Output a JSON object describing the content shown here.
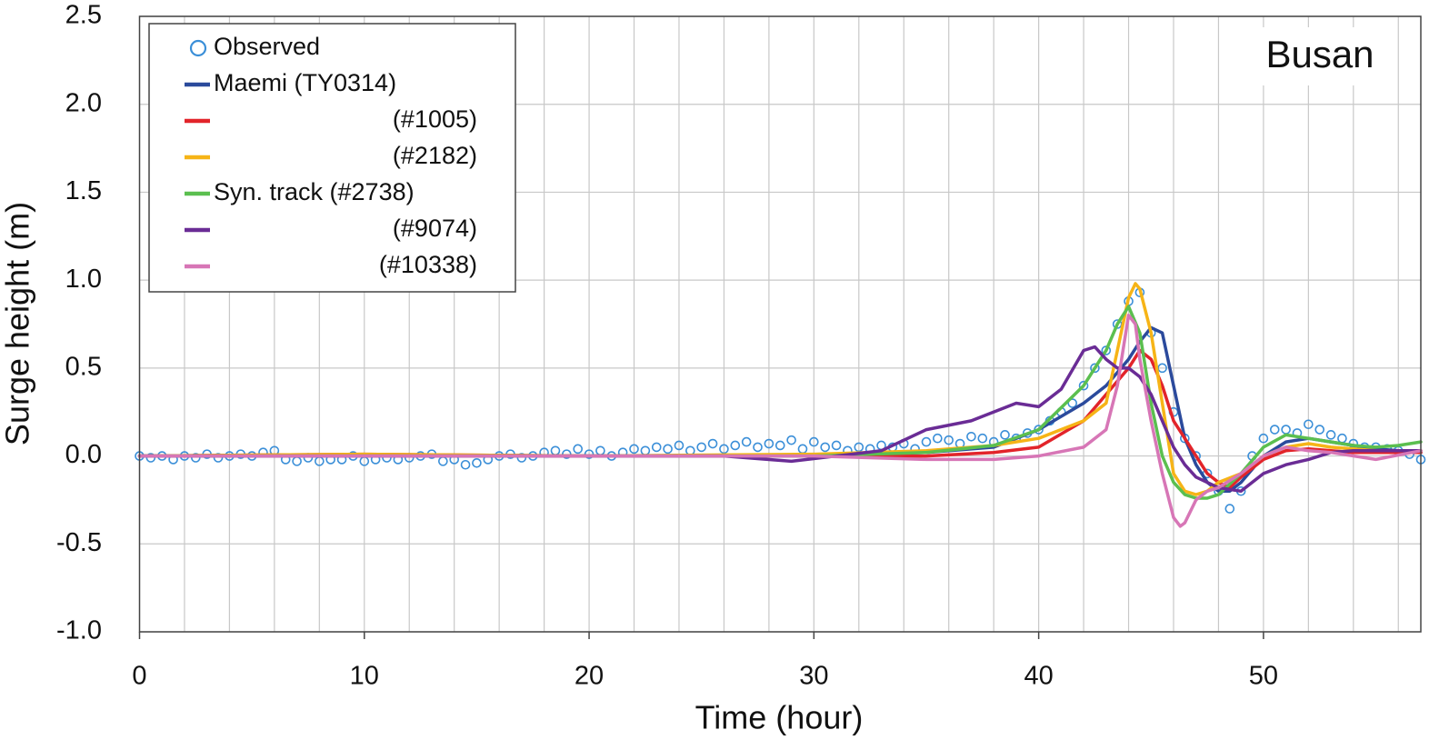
{
  "chart_data": {
    "type": "line",
    "annotation": "Busan",
    "xlabel": "Time (hour)",
    "ylabel": "Surge height (m)",
    "xlim": [
      0,
      57
    ],
    "ylim": [
      -1,
      2.5
    ],
    "xticks": [
      0,
      10,
      20,
      30,
      40,
      50
    ],
    "xgrid": [
      2,
      4,
      6,
      8,
      10,
      12,
      14,
      16,
      18,
      20,
      22,
      24,
      26,
      28,
      30,
      32,
      34,
      36,
      38,
      40,
      42,
      44,
      46,
      48,
      50,
      52,
      54,
      56
    ],
    "yticks": [
      {
        "value": -1,
        "label": "-1.0"
      },
      -0.5,
      {
        "value": 0,
        "label": "0.0"
      },
      0.5,
      {
        "value": 1,
        "label": "1.0"
      },
      1.5,
      {
        "value": 2,
        "label": "2.0"
      },
      2.5
    ],
    "grid": true,
    "legend": "upper left",
    "series": [
      {
        "name": "Observed",
        "color": "#3b8fd8",
        "marker": "circle",
        "x": [
          0,
          0.5,
          1,
          1.5,
          2,
          2.5,
          3,
          3.5,
          4,
          4.5,
          5,
          5.5,
          6,
          6.5,
          7,
          7.5,
          8,
          8.5,
          9,
          9.5,
          10,
          10.5,
          11,
          11.5,
          12,
          12.5,
          13,
          13.5,
          14,
          14.5,
          15,
          15.5,
          16,
          16.5,
          17,
          17.5,
          18,
          18.5,
          19,
          19.5,
          20,
          20.5,
          21,
          21.5,
          22,
          22.5,
          23,
          23.5,
          24,
          24.5,
          25,
          25.5,
          26,
          26.5,
          27,
          27.5,
          28,
          28.5,
          29,
          29.5,
          30,
          30.5,
          31,
          31.5,
          32,
          32.5,
          33,
          33.5,
          34,
          34.5,
          35,
          35.5,
          36,
          36.5,
          37,
          37.5,
          38,
          38.5,
          39,
          39.5,
          40,
          40.5,
          41,
          41.5,
          42,
          42.5,
          43,
          43.5,
          44,
          44.5,
          45,
          45.5,
          46,
          46.5,
          47,
          47.5,
          48,
          48.5,
          49,
          49.5,
          50,
          50.5,
          51,
          51.5,
          52,
          52.5,
          53,
          53.5,
          54,
          54.5,
          55,
          55.5,
          56,
          56.5,
          57
        ],
        "values": [
          0,
          -0.01,
          0,
          -0.02,
          0,
          -0.01,
          0.01,
          -0.01,
          0,
          0.01,
          0,
          0.02,
          0.03,
          -0.02,
          -0.03,
          -0.01,
          -0.03,
          -0.02,
          -0.02,
          0,
          -0.03,
          -0.02,
          -0.01,
          -0.02,
          -0.01,
          0,
          0.01,
          -0.03,
          -0.02,
          -0.05,
          -0.04,
          -0.02,
          0,
          0.01,
          -0.01,
          0,
          0.02,
          0.03,
          0.01,
          0.04,
          0.01,
          0.03,
          0,
          0.02,
          0.04,
          0.03,
          0.05,
          0.04,
          0.06,
          0.03,
          0.05,
          0.07,
          0.04,
          0.06,
          0.08,
          0.05,
          0.07,
          0.06,
          0.09,
          0.04,
          0.08,
          0.05,
          0.06,
          0.03,
          0.05,
          0.04,
          0.06,
          0.05,
          0.07,
          0.04,
          0.08,
          0.1,
          0.09,
          0.07,
          0.11,
          0.1,
          0.08,
          0.12,
          0.1,
          0.13,
          0.15,
          0.2,
          0.25,
          0.3,
          0.4,
          0.5,
          0.6,
          0.75,
          0.88,
          0.93,
          0.7,
          0.5,
          0.25,
          0.1,
          0,
          -0.1,
          -0.2,
          -0.3,
          -0.2,
          0,
          0.1,
          0.15,
          0.15,
          0.13,
          0.18,
          0.15,
          0.12,
          0.1,
          0.07,
          0.05,
          0.05,
          0.04,
          0.03,
          0.01,
          -0.02
        ]
      },
      {
        "name": "Maemi (TY0314)",
        "color": "#2b4a9c",
        "x": [
          0,
          10,
          20,
          30,
          35,
          38,
          40,
          42,
          43,
          44,
          44.5,
          45,
          45.5,
          46,
          46.5,
          47,
          47.5,
          48,
          48.5,
          49,
          50,
          51,
          52,
          53,
          54,
          55,
          56,
          57
        ],
        "values": [
          0,
          0,
          0,
          0,
          0.02,
          0.05,
          0.15,
          0.3,
          0.4,
          0.55,
          0.65,
          0.73,
          0.7,
          0.4,
          0.1,
          -0.05,
          -0.15,
          -0.2,
          -0.2,
          -0.15,
          0,
          0.08,
          0.1,
          0.08,
          0.06,
          0.04,
          0.03,
          0.02
        ]
      },
      {
        "name": "(#1005)",
        "color": "#e2242a",
        "x": [
          0,
          10,
          20,
          30,
          35,
          38,
          40,
          42,
          43,
          44,
          44.5,
          45,
          45.5,
          46,
          46.5,
          47,
          47.5,
          48,
          48.5,
          49,
          50,
          51,
          52,
          53,
          54,
          55,
          56,
          57
        ],
        "values": [
          0,
          0.01,
          0,
          0,
          0,
          0.02,
          0.05,
          0.2,
          0.35,
          0.5,
          0.6,
          0.55,
          0.4,
          0.2,
          0.1,
          0,
          -0.1,
          -0.15,
          -0.18,
          -0.12,
          -0.02,
          0.03,
          0.04,
          0.03,
          0.02,
          0.02,
          0.02,
          0.02
        ]
      },
      {
        "name": "(#2182)",
        "color": "#f6b417",
        "x": [
          0,
          10,
          20,
          30,
          35,
          38,
          40,
          42,
          43,
          43.5,
          44,
          44.3,
          44.5,
          45,
          45.5,
          46,
          46.5,
          47,
          47.5,
          48,
          49,
          50,
          51,
          52,
          53,
          54,
          55,
          56,
          57
        ],
        "values": [
          0,
          0.01,
          0,
          0.01,
          0.03,
          0.06,
          0.1,
          0.2,
          0.3,
          0.6,
          0.9,
          0.98,
          0.95,
          0.7,
          0.3,
          -0.1,
          -0.2,
          -0.22,
          -0.2,
          -0.15,
          -0.1,
          0,
          0.05,
          0.07,
          0.05,
          0.04,
          0.03,
          0.03,
          0.03
        ]
      },
      {
        "name": "Syn. track (#2738)",
        "color": "#5bbf4f",
        "x": [
          0,
          10,
          20,
          30,
          35,
          38,
          40,
          42,
          43,
          43.5,
          44,
          44.5,
          45,
          45.5,
          46,
          46.5,
          47,
          47.5,
          48,
          49,
          50,
          51,
          52,
          53,
          54,
          55,
          56,
          57
        ],
        "values": [
          0,
          0,
          0,
          0,
          0.02,
          0.06,
          0.15,
          0.4,
          0.6,
          0.75,
          0.85,
          0.7,
          0.3,
          0,
          -0.15,
          -0.22,
          -0.24,
          -0.24,
          -0.22,
          -0.1,
          0.05,
          0.12,
          0.1,
          0.08,
          0.06,
          0.05,
          0.06,
          0.08
        ]
      },
      {
        "name": "(#9074)",
        "color": "#6a2c95",
        "x": [
          0,
          10,
          20,
          26,
          29,
          33,
          35,
          37,
          39,
          40,
          41,
          42,
          42.5,
          43,
          43.5,
          44,
          44.5,
          45,
          45.5,
          46,
          46.5,
          47,
          48,
          49,
          50,
          51,
          52,
          53,
          54,
          55,
          56,
          57
        ],
        "values": [
          0,
          0,
          0,
          0,
          -0.03,
          0.03,
          0.15,
          0.2,
          0.3,
          0.28,
          0.38,
          0.6,
          0.62,
          0.55,
          0.5,
          0.5,
          0.45,
          0.35,
          0.2,
          0.05,
          -0.05,
          -0.12,
          -0.18,
          -0.2,
          -0.1,
          -0.05,
          -0.02,
          0.02,
          0.03,
          0.03,
          0.03,
          0.03
        ]
      },
      {
        "name": "(#10338)",
        "color": "#d776b6",
        "x": [
          0,
          10,
          20,
          30,
          35,
          38,
          40,
          42,
          43,
          43.5,
          44,
          44.3,
          44.5,
          45,
          45.5,
          46,
          46.3,
          46.5,
          47,
          47.5,
          48,
          49,
          50,
          51,
          52,
          53,
          55,
          57
        ],
        "values": [
          0,
          0,
          0,
          0,
          -0.02,
          -0.02,
          0,
          0.05,
          0.15,
          0.4,
          0.8,
          0.75,
          0.55,
          0.2,
          -0.1,
          -0.35,
          -0.4,
          -0.38,
          -0.25,
          -0.2,
          -0.18,
          -0.1,
          0,
          0.05,
          0.03,
          0.02,
          -0.02,
          0.03
        ]
      }
    ]
  }
}
